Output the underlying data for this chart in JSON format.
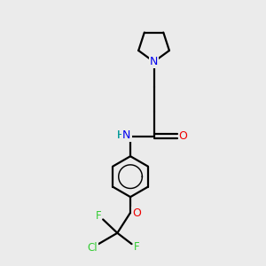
{
  "background_color": "#ebebeb",
  "bond_color": "#000000",
  "bond_width": 1.6,
  "font_size_atom": 8.5,
  "figsize": [
    3.0,
    3.0
  ],
  "dpi": 100,
  "colors": {
    "N": "#0000ee",
    "O": "#ee0000",
    "F": "#33cc33",
    "Cl": "#33cc33",
    "NH_N": "#0000ee",
    "NH_H": "#009999"
  }
}
